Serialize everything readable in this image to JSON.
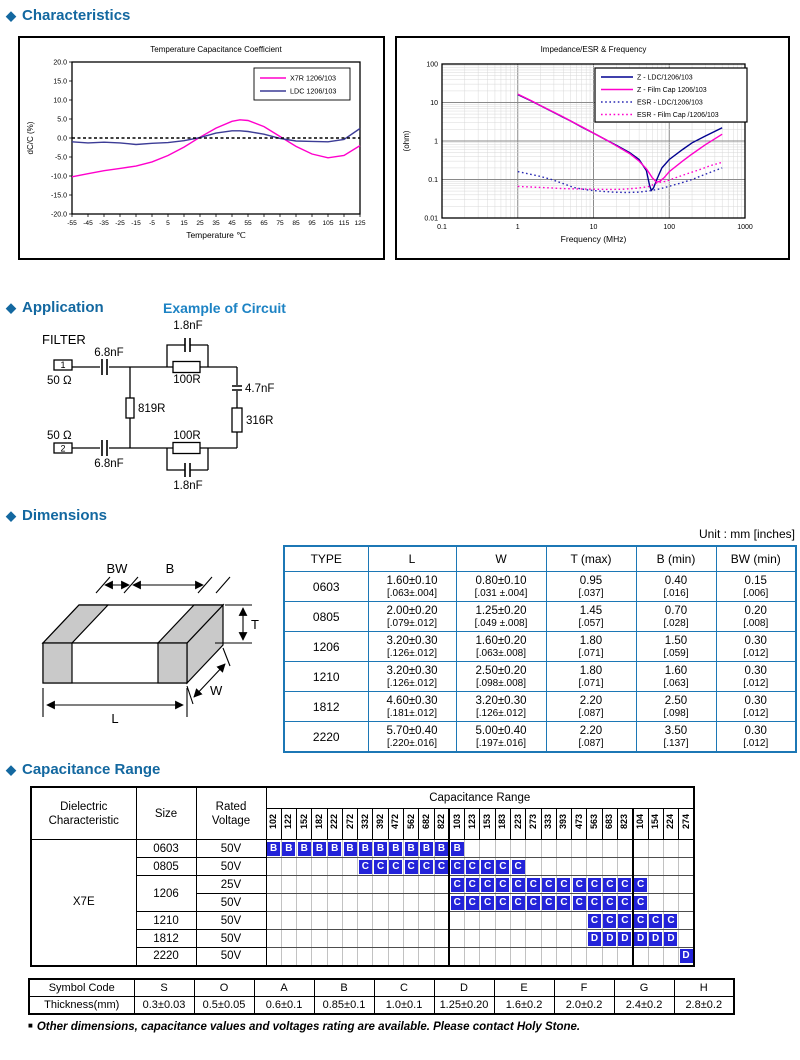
{
  "headings": {
    "bullet": "◆",
    "characteristics": "Characteristics",
    "application": "Application",
    "application_sub": "Example of Circuit",
    "dimensions": "Dimensions",
    "capacitance_range": "Capacitance Range"
  },
  "chart_data": [
    {
      "type": "line",
      "title": "Temperature Capacitance Coefficient",
      "xlabel": "Temperature ℃",
      "ylabel": "dC/C (%)",
      "xlim": [
        -55,
        125
      ],
      "ylim": [
        -20,
        20
      ],
      "grid": false,
      "legend_position": "top-right",
      "xticks": [
        -55,
        -45,
        -35,
        -25,
        -15,
        -5,
        5,
        15,
        25,
        35,
        45,
        55,
        65,
        75,
        85,
        95,
        105,
        115,
        125
      ],
      "yticks": [
        20,
        15,
        10,
        5,
        0,
        -5,
        -10,
        -15,
        -20
      ],
      "ytick_labels": [
        "20.0",
        "15.0",
        "10.0",
        "5.0",
        "0.0",
        "-5.0",
        "-10.0",
        "-15.0",
        "-20.0"
      ],
      "series": [
        {
          "name": "X7R 1206/103",
          "color": "#ff00cc",
          "style": "solid",
          "x": [
            -55,
            -45,
            -35,
            -25,
            -15,
            -5,
            5,
            15,
            25,
            35,
            45,
            50,
            55,
            65,
            75,
            85,
            95,
            105,
            115,
            125
          ],
          "y": [
            -10.2,
            -9.4,
            -8.6,
            -8.0,
            -7.4,
            -6.3,
            -4.6,
            -2.4,
            0.2,
            2.6,
            4.4,
            4.8,
            4.6,
            3.0,
            0.4,
            -2.2,
            -4.2,
            -5.2,
            -4.6,
            -2.0
          ]
        },
        {
          "name": "LDC 1206/103",
          "color": "#3c3c96",
          "style": "solid",
          "x": [
            -55,
            -45,
            -35,
            -25,
            -15,
            -5,
            5,
            15,
            25,
            35,
            45,
            50,
            55,
            65,
            75,
            85,
            95,
            105,
            115,
            125
          ],
          "y": [
            -1.0,
            -1.3,
            -1.1,
            -1.3,
            -1.7,
            -1.4,
            -1.2,
            -0.7,
            0.1,
            1.3,
            1.9,
            1.9,
            1.7,
            1.0,
            -0.1,
            -0.8,
            -0.9,
            -1.0,
            -0.4,
            2.5
          ]
        },
        {
          "name": "zero-line",
          "color": "#000000",
          "style": "dashed",
          "legend": false,
          "x": [
            -55,
            125
          ],
          "y": [
            0,
            0
          ]
        }
      ]
    },
    {
      "type": "line",
      "title": "Impedance/ESR & Frequency",
      "xlabel": "Frequency (MHz)",
      "ylabel": "(ohm)",
      "xscale": "log",
      "yscale": "log",
      "xlim": [
        0.1,
        1000
      ],
      "ylim": [
        0.01,
        100
      ],
      "grid": true,
      "legend_position": "top-right",
      "xtick_labels": [
        "0.1",
        "1",
        "10",
        "100",
        "1000"
      ],
      "xtick_values": [
        0.1,
        1,
        10,
        100,
        1000
      ],
      "ytick_labels": [
        "100",
        "10",
        "1",
        "0.1",
        "0.01"
      ],
      "ytick_values": [
        100,
        10,
        1,
        0.1,
        0.01
      ],
      "series": [
        {
          "name": "Z - LDC/1206/103",
          "color": "#000090",
          "style": "solid",
          "x": [
            1,
            1.5,
            2,
            3,
            4,
            5,
            7,
            10,
            15,
            20,
            30,
            40,
            50,
            55,
            58,
            62,
            70,
            80,
            100,
            150,
            200,
            300,
            500
          ],
          "y": [
            16,
            11,
            8.2,
            5.5,
            4.1,
            3.3,
            2.3,
            1.6,
            1.05,
            0.78,
            0.5,
            0.33,
            0.17,
            0.07,
            0.052,
            0.06,
            0.11,
            0.2,
            0.33,
            0.6,
            0.9,
            1.35,
            2.2
          ]
        },
        {
          "name": "Z - Film Cap 1206/103",
          "color": "#ff00cc",
          "style": "solid",
          "x": [
            1,
            1.5,
            2,
            3,
            4,
            5,
            7,
            10,
            15,
            20,
            30,
            40,
            50,
            60,
            68,
            75,
            85,
            100,
            150,
            200,
            300,
            500
          ],
          "y": [
            16.5,
            11.2,
            8.3,
            5.6,
            4.2,
            3.3,
            2.35,
            1.6,
            1.05,
            0.75,
            0.47,
            0.3,
            0.19,
            0.11,
            0.085,
            0.09,
            0.11,
            0.16,
            0.3,
            0.46,
            0.8,
            1.5
          ]
        },
        {
          "name": "ESR - LDC/1206/103",
          "color": "#2828b4",
          "style": "dotted",
          "x": [
            1,
            1.4,
            2,
            2.8,
            4,
            5.5,
            8,
            12,
            18,
            27,
            40,
            55,
            75,
            100,
            140,
            200,
            280,
            400,
            500
          ],
          "y": [
            0.16,
            0.14,
            0.12,
            0.1,
            0.078,
            0.062,
            0.054,
            0.05,
            0.047,
            0.046,
            0.047,
            0.051,
            0.057,
            0.067,
            0.08,
            0.1,
            0.13,
            0.17,
            0.2
          ]
        },
        {
          "name": "ESR - Film Cap /1206/103",
          "color": "#ff00cc",
          "style": "dotted",
          "x": [
            1,
            1.5,
            2.5,
            4,
            6,
            10,
            16,
            25,
            40,
            55,
            70,
            90,
            120,
            170,
            250,
            350,
            500
          ],
          "y": [
            0.066,
            0.064,
            0.061,
            0.058,
            0.057,
            0.056,
            0.055,
            0.056,
            0.06,
            0.066,
            0.083,
            0.09,
            0.11,
            0.14,
            0.18,
            0.23,
            0.28
          ]
        }
      ]
    }
  ],
  "circuit": {
    "filter_label": "FILTER",
    "port1": "1",
    "port2": "2",
    "imp1": "50 Ω",
    "imp2": "50 Ω",
    "cap_in_top": "6.8nF",
    "cap_in_bottom": "6.8nF",
    "cap_fb_top": "1.8nF",
    "cap_fb_bottom": "1.8nF",
    "res_top": "100R",
    "res_bottom": "100R",
    "res_shunt": "819R",
    "res_right": "316R",
    "cap_right": "4.7nF"
  },
  "dimensions": {
    "unit_label": "Unit : mm [inches]",
    "diagram_labels": {
      "bw": "BW",
      "b": "B",
      "t": "T",
      "w": "W",
      "l": "L"
    },
    "table": {
      "headers": [
        "TYPE",
        "L",
        "W",
        "T (max)",
        "B (min)",
        "BW (min)"
      ],
      "rows": [
        {
          "type": "0603",
          "cells": [
            [
              "1.60±0.10",
              "[.063±.004]"
            ],
            [
              "0.80±0.10",
              "[.031 ±.004]"
            ],
            [
              "0.95",
              "[.037]"
            ],
            [
              "0.40",
              "[.016]"
            ],
            [
              "0.15",
              "[.006]"
            ]
          ]
        },
        {
          "type": "0805",
          "cells": [
            [
              "2.00±0.20",
              "[.079±.012]"
            ],
            [
              "1.25±0.20",
              "[.049 ±.008]"
            ],
            [
              "1.45",
              "[.057]"
            ],
            [
              "0.70",
              "[.028]"
            ],
            [
              "0.20",
              "[.008]"
            ]
          ]
        },
        {
          "type": "1206",
          "cells": [
            [
              "3.20±0.30",
              "[.126±.012]"
            ],
            [
              "1.60±0.20",
              "[.063±.008]"
            ],
            [
              "1.80",
              "[.071]"
            ],
            [
              "1.50",
              "[.059]"
            ],
            [
              "0.30",
              "[.012]"
            ]
          ]
        },
        {
          "type": "1210",
          "cells": [
            [
              "3.20±0.30",
              "[.126±.012]"
            ],
            [
              "2.50±0.20",
              "[.098±.008]"
            ],
            [
              "1.80",
              "[.071]"
            ],
            [
              "1.60",
              "[.063]"
            ],
            [
              "0.30",
              "[.012]"
            ]
          ]
        },
        {
          "type": "1812",
          "cells": [
            [
              "4.60±0.30",
              "[.181±.012]"
            ],
            [
              "3.20±0.30",
              "[.126±.012]"
            ],
            [
              "2.20",
              "[.087]"
            ],
            [
              "2.50",
              "[.098]"
            ],
            [
              "0.30",
              "[.012]"
            ]
          ]
        },
        {
          "type": "2220",
          "cells": [
            [
              "5.70±0.40",
              "[.220±.016]"
            ],
            [
              "5.00±0.40",
              "[.197±.016]"
            ],
            [
              "2.20",
              "[.087]"
            ],
            [
              "3.50",
              "[.137]"
            ],
            [
              "0.30",
              "[.012]"
            ]
          ]
        }
      ]
    }
  },
  "capacitance": {
    "col1_line1": "Dielectric",
    "col1_line2": "Characteristic",
    "size_header": "Size",
    "voltage_header_line1": "Rated",
    "voltage_header_line2": "Voltage",
    "range_header": "Capacitance Range",
    "dielectric": "X7E",
    "codes": [
      "102",
      "122",
      "152",
      "182",
      "222",
      "272",
      "332",
      "392",
      "472",
      "562",
      "682",
      "822",
      "103",
      "123",
      "153",
      "183",
      "223",
      "273",
      "333",
      "393",
      "473",
      "563",
      "683",
      "823",
      "104",
      "154",
      "224",
      "274"
    ],
    "rows": [
      {
        "size": "0603",
        "size_rowspan": 1,
        "voltage": "50V",
        "letter": "B",
        "cols": [
          "102",
          "122",
          "152",
          "182",
          "222",
          "272",
          "332",
          "392",
          "472",
          "562",
          "682",
          "822",
          "103"
        ]
      },
      {
        "size": "0805",
        "size_rowspan": 1,
        "voltage": "50V",
        "letter": "C",
        "cols": [
          "332",
          "392",
          "472",
          "562",
          "682",
          "822",
          "103",
          "123",
          "153",
          "183",
          "223"
        ]
      },
      {
        "size": "1206",
        "size_rowspan": 2,
        "voltage": "25V",
        "letter": "C",
        "cols": [
          "103",
          "123",
          "153",
          "183",
          "223",
          "273",
          "333",
          "393",
          "473",
          "563",
          "683",
          "823",
          "104"
        ]
      },
      {
        "size": null,
        "voltage": "50V",
        "letter": "C",
        "cols": [
          "103",
          "123",
          "153",
          "183",
          "223",
          "273",
          "333",
          "393",
          "473",
          "563",
          "683",
          "823",
          "104"
        ]
      },
      {
        "size": "1210",
        "size_rowspan": 1,
        "voltage": "50V",
        "letter": "C",
        "cols": [
          "563",
          "683",
          "823",
          "104",
          "154",
          "224"
        ]
      },
      {
        "size": "1812",
        "size_rowspan": 1,
        "voltage": "50V",
        "letter": "D",
        "cols": [
          "563",
          "683",
          "823",
          "104",
          "154",
          "224"
        ]
      },
      {
        "size": "2220",
        "size_rowspan": 1,
        "voltage": "50V",
        "letter": "D",
        "cols": [
          "274"
        ]
      }
    ]
  },
  "symbol_table": {
    "row1_label": "Symbol Code",
    "row2_label": "Thickness(mm)",
    "codes": [
      "S",
      "O",
      "A",
      "B",
      "C",
      "D",
      "E",
      "F",
      "G",
      "H"
    ],
    "thickness": [
      "0.3±0.03",
      "0.5±0.05",
      "0.6±0.1",
      "0.85±0.1",
      "1.0±0.1",
      "1.25±0.20",
      "1.6±0.2",
      "2.0±0.2",
      "2.4±0.2",
      "2.8±0.2"
    ]
  },
  "footer_note": {
    "bullet": "■",
    "text": "Other dimensions, capacitance values and voltages rating are available. Please contact Holy Stone."
  },
  "colors": {
    "heading_blue": "#1368a0",
    "sub_heading_blue": "#1d83c4",
    "table_blue": "#1c77b5",
    "cell_blue": "#2323d9",
    "magenta": "#ff00cc",
    "navy": "#000090"
  }
}
